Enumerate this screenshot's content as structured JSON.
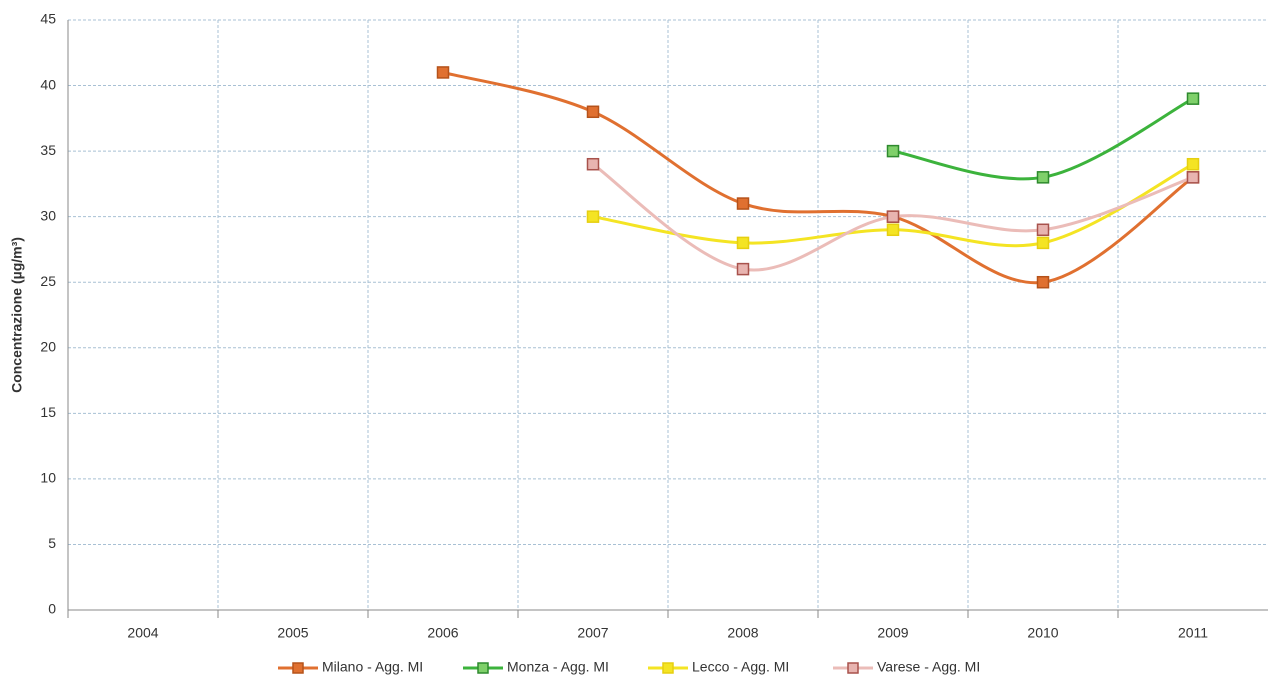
{
  "chart_data": {
    "type": "line",
    "y_label": "Concentrazione (µg/m³)",
    "categories": [
      "2004",
      "2005",
      "2006",
      "2007",
      "2008",
      "2009",
      "2010",
      "2011"
    ],
    "series": [
      {
        "name": "Milano - Agg. MI",
        "color": "#e07030",
        "marker_edge": "#b5521a",
        "values": [
          null,
          null,
          41,
          38,
          31,
          30,
          25,
          33
        ]
      },
      {
        "name": "Monza - Agg. MI",
        "color": "#3cb33c",
        "marker_edge": "#2e8a2e",
        "marker_fill": "#7fd06a",
        "values": [
          null,
          null,
          null,
          null,
          null,
          35,
          33,
          39
        ]
      },
      {
        "name": "Lecco - Agg. MI",
        "color": "#f4e423",
        "marker_edge": "#e6cf10",
        "values": [
          null,
          null,
          null,
          30,
          28,
          29,
          28,
          34
        ]
      },
      {
        "name": "Varese - Agg. MI",
        "color": "#ebbcb8",
        "marker_edge": "#a8524c",
        "marker_fill": "#e8b4b0",
        "values": [
          null,
          null,
          null,
          34,
          26,
          30,
          29,
          33
        ]
      }
    ],
    "ylim": [
      0,
      45
    ],
    "yticks": [
      0,
      5,
      10,
      15,
      20,
      25,
      30,
      35,
      40,
      45
    ],
    "grid": true,
    "smooth": true,
    "legend": "bottom"
  }
}
